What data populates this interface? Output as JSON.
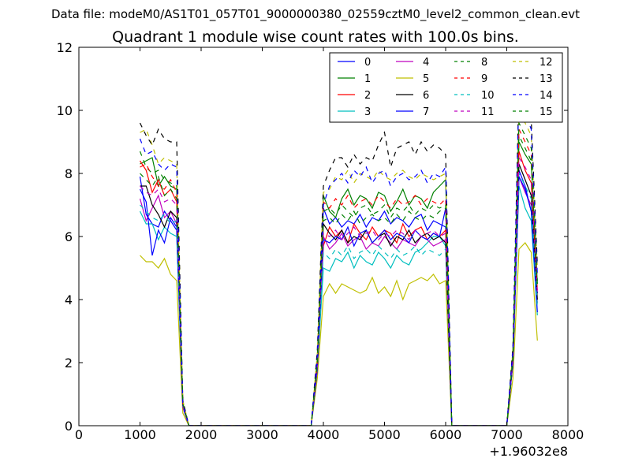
{
  "header": {
    "file_label": "Data file: modeM0/AS1T01_057T01_9000000380_02559cztM0_level2_common_clean.evt"
  },
  "chart_data": {
    "type": "line",
    "title": "Quadrant 1 module wise count rates with 100.0s bins.",
    "xlabel": "",
    "ylabel": "",
    "x_offset_label": "+1.96032e8",
    "xlim": [
      0,
      8000
    ],
    "ylim": [
      0,
      12
    ],
    "x_ticks": [
      "0",
      "1000",
      "2000",
      "3000",
      "4000",
      "5000",
      "6000",
      "7000",
      "8000"
    ],
    "y_ticks": [
      "0",
      "2",
      "4",
      "6",
      "8",
      "10",
      "12"
    ],
    "grid": false,
    "legend_position": "top-right",
    "x": [
      1000,
      1100,
      1200,
      1300,
      1400,
      1500,
      1600,
      1700,
      1800,
      1900,
      2000,
      2100,
      2200,
      2300,
      2400,
      2500,
      2600,
      2700,
      2800,
      2900,
      3000,
      3100,
      3200,
      3300,
      3400,
      3500,
      3600,
      3700,
      3800,
      3900,
      4000,
      4100,
      4200,
      4300,
      4400,
      4500,
      4600,
      4700,
      4800,
      4900,
      5000,
      5100,
      5200,
      5300,
      5400,
      5500,
      5600,
      5700,
      5800,
      5900,
      6000,
      6100,
      6200,
      6300,
      6400,
      6500,
      6600,
      6700,
      6800,
      6900,
      7000,
      7100,
      7200,
      7300,
      7400,
      7500
    ],
    "series": [
      {
        "name": "0",
        "color": "#0000ff",
        "dash": "solid",
        "values": [
          7.9,
          6.7,
          6.4,
          6.3,
          6.8,
          6.5,
          6.2,
          0.6,
          0,
          0,
          0,
          0,
          0,
          0,
          0,
          0,
          0,
          0,
          0,
          0,
          0,
          0,
          0,
          0,
          0,
          0,
          0,
          0,
          0,
          1.9,
          6.9,
          6.4,
          6.6,
          6.3,
          6.5,
          6.4,
          6.7,
          6.3,
          6.6,
          6.5,
          6.8,
          6.4,
          6.6,
          6.5,
          6.3,
          6.6,
          6.7,
          6.2,
          6.5,
          6.4,
          6.3,
          0,
          0,
          0,
          0,
          0,
          0,
          0,
          0,
          0,
          0,
          2.1,
          8.1,
          7.6,
          6.8,
          4.2
        ]
      },
      {
        "name": "1",
        "color": "#008000",
        "dash": "solid",
        "values": [
          8.3,
          8.4,
          8.5,
          7.6,
          7.9,
          7.6,
          7.5,
          0.7,
          0,
          0,
          0,
          0,
          0,
          0,
          0,
          0,
          0,
          0,
          0,
          0,
          0,
          0,
          0,
          0,
          0,
          0,
          0,
          0,
          0,
          2.1,
          7.3,
          6.8,
          6.6,
          7.2,
          7.5,
          7.0,
          7.3,
          7.2,
          6.9,
          7.4,
          7.3,
          6.8,
          7.1,
          7.5,
          7.0,
          7.3,
          7.2,
          6.9,
          7.4,
          7.6,
          7.8,
          0,
          0,
          0,
          0,
          0,
          0,
          0,
          0,
          0,
          0,
          2.3,
          9.0,
          8.6,
          8.3,
          4.5
        ]
      },
      {
        "name": "2",
        "color": "#ff0000",
        "dash": "solid",
        "values": [
          8.4,
          8.1,
          7.4,
          7.8,
          7.3,
          7.5,
          7.1,
          0.7,
          0,
          0,
          0,
          0,
          0,
          0,
          0,
          0,
          0,
          0,
          0,
          0,
          0,
          0,
          0,
          0,
          0,
          0,
          0,
          0,
          0,
          2.0,
          5.7,
          6.3,
          6.0,
          6.2,
          5.8,
          6.4,
          6.1,
          5.9,
          6.3,
          6.0,
          6.2,
          6.1,
          5.8,
          6.4,
          6.0,
          6.2,
          6.3,
          5.9,
          6.1,
          6.0,
          6.2,
          0,
          0,
          0,
          0,
          0,
          0,
          0,
          0,
          0,
          0,
          2.2,
          8.7,
          8.1,
          7.7,
          4.3
        ]
      },
      {
        "name": "3",
        "color": "#00bfbf",
        "dash": "solid",
        "values": [
          6.8,
          6.4,
          6.4,
          5.9,
          6.3,
          6.1,
          6.0,
          0.6,
          0,
          0,
          0,
          0,
          0,
          0,
          0,
          0,
          0,
          0,
          0,
          0,
          0,
          0,
          0,
          0,
          0,
          0,
          0,
          0,
          0,
          1.8,
          5.0,
          4.9,
          5.3,
          5.2,
          5.5,
          5.0,
          5.4,
          5.2,
          5.1,
          5.5,
          5.3,
          5.0,
          5.4,
          5.2,
          5.1,
          5.5,
          5.6,
          5.8,
          6.0,
          6.0,
          5.7,
          0,
          0,
          0,
          0,
          0,
          0,
          0,
          0,
          0,
          0,
          2.0,
          7.6,
          6.9,
          6.5,
          3.5
        ]
      },
      {
        "name": "4",
        "color": "#bf00bf",
        "dash": "solid",
        "values": [
          7.2,
          6.5,
          6.9,
          7.3,
          6.6,
          6.8,
          6.4,
          0.6,
          0,
          0,
          0,
          0,
          0,
          0,
          0,
          0,
          0,
          0,
          0,
          0,
          0,
          0,
          0,
          0,
          0,
          0,
          0,
          0,
          0,
          1.9,
          6.0,
          5.6,
          5.8,
          6.1,
          5.7,
          5.9,
          6.0,
          5.6,
          5.8,
          5.7,
          6.0,
          5.8,
          5.6,
          5.9,
          5.8,
          5.7,
          6.0,
          5.9,
          5.7,
          5.8,
          5.9,
          0,
          0,
          0,
          0,
          0,
          0,
          0,
          0,
          0,
          0,
          2.1,
          7.9,
          7.4,
          7.0,
          3.9
        ]
      },
      {
        "name": "5",
        "color": "#bfbf00",
        "dash": "solid",
        "values": [
          5.4,
          5.2,
          5.2,
          5.0,
          5.3,
          4.8,
          4.6,
          0.4,
          0,
          0,
          0,
          0,
          0,
          0,
          0,
          0,
          0,
          0,
          0,
          0,
          0,
          0,
          0,
          0,
          0,
          0,
          0,
          0,
          0,
          1.5,
          4.1,
          4.5,
          4.2,
          4.5,
          4.4,
          4.3,
          4.2,
          4.3,
          4.7,
          4.2,
          4.4,
          4.1,
          4.6,
          4.0,
          4.5,
          4.6,
          4.7,
          4.6,
          4.8,
          4.5,
          4.6,
          0,
          0,
          0,
          0,
          0,
          0,
          0,
          0,
          0,
          0,
          1.5,
          5.6,
          5.8,
          5.5,
          2.7
        ]
      },
      {
        "name": "6",
        "color": "#000000",
        "dash": "solid",
        "values": [
          7.6,
          7.6,
          7.0,
          6.7,
          6.3,
          6.8,
          6.6,
          0.6,
          0,
          0,
          0,
          0,
          0,
          0,
          0,
          0,
          0,
          0,
          0,
          0,
          0,
          0,
          0,
          0,
          0,
          0,
          0,
          0,
          0,
          1.8,
          6.4,
          6.1,
          5.9,
          6.2,
          5.8,
          6.0,
          5.9,
          6.2,
          5.8,
          6.0,
          6.1,
          5.7,
          6.0,
          5.9,
          6.2,
          5.8,
          6.0,
          6.1,
          5.9,
          6.0,
          5.8,
          0,
          0,
          0,
          0,
          0,
          0,
          0,
          0,
          0,
          0,
          2.0,
          8.3,
          7.8,
          7.3,
          4.0
        ]
      },
      {
        "name": "7",
        "color": "#0000ff",
        "dash": "solid",
        "values": [
          7.5,
          7.1,
          5.4,
          6.2,
          5.8,
          6.6,
          6.3,
          0.6,
          0,
          0,
          0,
          0,
          0,
          0,
          0,
          0,
          0,
          0,
          0,
          0,
          0,
          0,
          0,
          0,
          0,
          0,
          0,
          0,
          0,
          1.8,
          5.9,
          5.8,
          6.0,
          5.9,
          6.3,
          5.7,
          6.1,
          6.2,
          5.8,
          6.0,
          6.2,
          5.9,
          6.1,
          6.0,
          5.8,
          6.2,
          6.0,
          5.9,
          6.1,
          6.0,
          6.9,
          0,
          0,
          0,
          0,
          0,
          0,
          0,
          0,
          0,
          0,
          2.0,
          7.9,
          7.5,
          6.8,
          3.6
        ]
      },
      {
        "name": "8",
        "color": "#008000",
        "dash": "dashed",
        "values": [
          8.7,
          8.2,
          8.0,
          8.1,
          7.8,
          7.7,
          7.6,
          0.7,
          0,
          0,
          0,
          0,
          0,
          0,
          0,
          0,
          0,
          0,
          0,
          0,
          0,
          0,
          0,
          0,
          0,
          0,
          0,
          0,
          0,
          2.1,
          6.5,
          6.6,
          6.4,
          6.7,
          6.5,
          6.8,
          6.4,
          6.6,
          6.7,
          6.5,
          6.6,
          6.4,
          6.7,
          6.5,
          6.8,
          6.6,
          6.5,
          6.7,
          6.6,
          6.8,
          6.9,
          0,
          0,
          0,
          0,
          0,
          0,
          0,
          0,
          0,
          0,
          2.2,
          9.2,
          8.8,
          8.4,
          4.6
        ]
      },
      {
        "name": "9",
        "color": "#ff0000",
        "dash": "dashed",
        "values": [
          8.2,
          8.3,
          7.9,
          7.6,
          7.5,
          7.8,
          7.4,
          0.7,
          0,
          0,
          0,
          0,
          0,
          0,
          0,
          0,
          0,
          0,
          0,
          0,
          0,
          0,
          0,
          0,
          0,
          0,
          0,
          0,
          0,
          2.0,
          7.1,
          6.9,
          7.2,
          7.0,
          7.3,
          6.9,
          7.1,
          7.2,
          7.0,
          7.3,
          7.1,
          6.9,
          7.2,
          7.0,
          7.1,
          7.3,
          7.0,
          7.2,
          7.1,
          7.0,
          7.2,
          0,
          0,
          0,
          0,
          0,
          0,
          0,
          0,
          0,
          0,
          2.2,
          9.4,
          9.0,
          8.6,
          4.7
        ]
      },
      {
        "name": "10",
        "color": "#00bfbf",
        "dash": "dashed",
        "values": [
          7.0,
          6.8,
          6.6,
          6.5,
          6.7,
          6.4,
          6.5,
          0.6,
          0,
          0,
          0,
          0,
          0,
          0,
          0,
          0,
          0,
          0,
          0,
          0,
          0,
          0,
          0,
          0,
          0,
          0,
          0,
          0,
          0,
          1.9,
          5.5,
          5.3,
          5.6,
          5.4,
          5.7,
          5.3,
          5.5,
          5.6,
          5.4,
          5.7,
          5.5,
          5.3,
          5.6,
          5.4,
          5.5,
          5.7,
          5.4,
          5.6,
          5.5,
          5.4,
          5.6,
          0,
          0,
          0,
          0,
          0,
          0,
          0,
          0,
          0,
          0,
          2.1,
          8.0,
          7.6,
          7.2,
          3.8
        ]
      },
      {
        "name": "11",
        "color": "#bf00bf",
        "dash": "dashed",
        "values": [
          7.6,
          7.4,
          7.3,
          7.5,
          7.1,
          7.2,
          7.0,
          0.6,
          0,
          0,
          0,
          0,
          0,
          0,
          0,
          0,
          0,
          0,
          0,
          0,
          0,
          0,
          0,
          0,
          0,
          0,
          0,
          0,
          0,
          1.9,
          6.1,
          6.0,
          6.2,
          5.9,
          6.1,
          6.3,
          6.0,
          6.1,
          6.2,
          5.9,
          6.1,
          6.0,
          6.2,
          6.1,
          5.9,
          6.2,
          6.0,
          6.1,
          6.2,
          6.0,
          6.1,
          0,
          0,
          0,
          0,
          0,
          0,
          0,
          0,
          0,
          0,
          2.1,
          8.5,
          8.2,
          7.8,
          4.2
        ]
      },
      {
        "name": "12",
        "color": "#bfbf00",
        "dash": "dashed",
        "values": [
          9.3,
          9.4,
          8.9,
          8.3,
          8.5,
          8.4,
          8.3,
          0.8,
          0,
          0,
          0,
          0,
          0,
          0,
          0,
          0,
          0,
          0,
          0,
          0,
          0,
          0,
          0,
          0,
          0,
          0,
          0,
          0,
          0,
          2.3,
          7.4,
          7.5,
          7.9,
          7.8,
          8.1,
          7.7,
          8.0,
          7.9,
          7.8,
          8.1,
          7.9,
          7.8,
          8.0,
          8.1,
          7.9,
          7.8,
          8.0,
          7.9,
          7.8,
          7.9,
          8.0,
          0,
          0,
          0,
          0,
          0,
          0,
          0,
          0,
          0,
          0,
          2.4,
          9.9,
          9.6,
          9.2,
          5.0
        ]
      },
      {
        "name": "13",
        "color": "#000000",
        "dash": "dashed",
        "values": [
          9.6,
          9.2,
          8.9,
          9.4,
          9.1,
          9.0,
          9.0,
          0.8,
          0,
          0,
          0,
          0,
          0,
          0,
          0,
          0,
          0,
          0,
          0,
          0,
          0,
          0,
          0,
          0,
          0,
          0,
          0,
          0,
          0,
          2.4,
          7.6,
          8.1,
          8.5,
          8.5,
          8.2,
          8.6,
          8.3,
          8.5,
          8.4,
          8.9,
          9.3,
          8.2,
          8.8,
          8.9,
          9.0,
          8.6,
          9.0,
          8.7,
          8.9,
          8.8,
          8.6,
          0,
          0,
          0,
          0,
          0,
          0,
          0,
          0,
          0,
          0,
          2.5,
          10.8,
          10.1,
          9.7,
          5.1
        ]
      },
      {
        "name": "14",
        "color": "#0000ff",
        "dash": "dashed",
        "values": [
          9.1,
          8.6,
          8.7,
          8.3,
          8.1,
          8.3,
          8.2,
          0.7,
          0,
          0,
          0,
          0,
          0,
          0,
          0,
          0,
          0,
          0,
          0,
          0,
          0,
          0,
          0,
          0,
          0,
          0,
          0,
          0,
          0,
          2.2,
          7.0,
          7.6,
          7.8,
          8.0,
          7.7,
          8.1,
          7.9,
          8.2,
          7.7,
          8.0,
          8.1,
          7.6,
          7.9,
          8.0,
          7.8,
          7.9,
          8.1,
          7.7,
          8.0,
          7.9,
          8.2,
          0,
          0,
          0,
          0,
          0,
          0,
          0,
          0,
          0,
          0,
          2.4,
          10.6,
          9.9,
          9.4,
          4.8
        ]
      },
      {
        "name": "15",
        "color": "#008000",
        "dash": "dashed",
        "values": [
          8.0,
          7.8,
          7.6,
          7.9,
          7.3,
          7.5,
          7.2,
          0.7,
          0,
          0,
          0,
          0,
          0,
          0,
          0,
          0,
          0,
          0,
          0,
          0,
          0,
          0,
          0,
          0,
          0,
          0,
          0,
          0,
          0,
          2.0,
          6.8,
          6.9,
          6.7,
          7.0,
          6.8,
          6.6,
          6.9,
          7.0,
          6.7,
          6.8,
          7.0,
          6.6,
          6.9,
          6.8,
          7.0,
          6.7,
          6.9,
          6.8,
          7.0,
          6.9,
          7.0,
          0,
          0,
          0,
          0,
          0,
          0,
          0,
          0,
          0,
          0,
          2.2,
          9.6,
          9.2,
          8.8,
          4.4
        ]
      }
    ]
  }
}
